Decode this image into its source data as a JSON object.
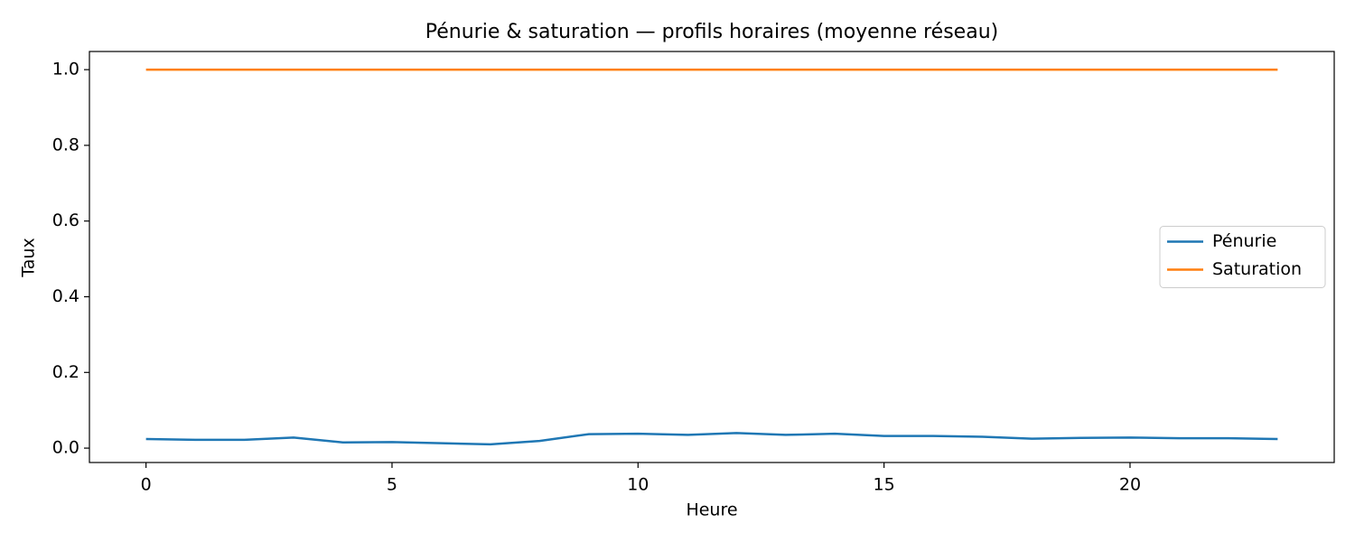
{
  "chart_data": {
    "type": "line",
    "title": "Pénurie & saturation — profils horaires (moyenne réseau)",
    "x_label": "Heure",
    "y_label": "Taux",
    "x": [
      0,
      1,
      2,
      3,
      4,
      5,
      6,
      7,
      8,
      9,
      10,
      11,
      12,
      13,
      14,
      15,
      16,
      17,
      18,
      19,
      20,
      21,
      22,
      23
    ],
    "series": [
      {
        "name": "Pénurie",
        "color": "#1f77b4",
        "values": [
          0.024,
          0.022,
          0.022,
          0.028,
          0.015,
          0.016,
          0.013,
          0.01,
          0.019,
          0.037,
          0.038,
          0.035,
          0.04,
          0.035,
          0.038,
          0.032,
          0.032,
          0.03,
          0.025,
          0.027,
          0.028,
          0.026,
          0.026,
          0.024
        ]
      },
      {
        "name": "Saturation",
        "color": "#ff7f0e",
        "values": [
          1,
          1,
          1,
          1,
          1,
          1,
          1,
          1,
          1,
          1,
          1,
          1,
          1,
          1,
          1,
          1,
          1,
          1,
          1,
          1,
          1,
          1,
          1,
          1
        ]
      }
    ],
    "xlim": [
      -1.15,
      24.15
    ],
    "xticks": [
      0,
      5,
      10,
      15,
      20
    ],
    "ylim": [
      -0.038,
      1.048
    ],
    "yticks": [
      {
        "value": 0,
        "label": "0.0"
      },
      0.2,
      0.4,
      0.6,
      0.8,
      {
        "value": 1,
        "label": "1.0"
      }
    ],
    "legend": "center right"
  }
}
